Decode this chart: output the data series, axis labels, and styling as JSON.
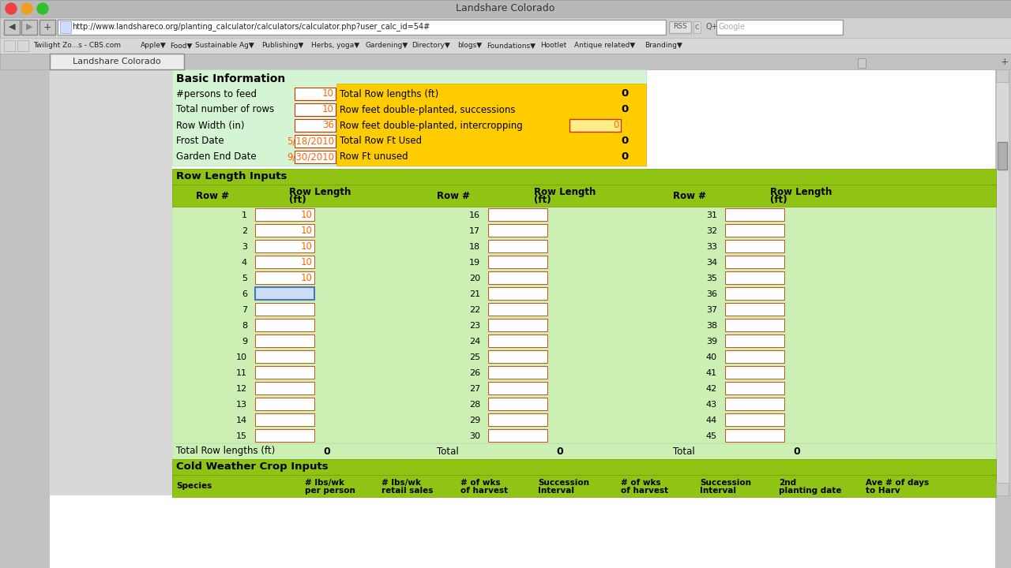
{
  "title": "Landshare Colorado",
  "url": "http://www.landshareco.org/planting_calculator/calculators/calculator.php?user_calc_id=54#",
  "bookmarks": [
    "Twilight Zo...s - CBS.com",
    "Apple▼",
    "Food▼",
    "Sustainable Ag▼",
    "Publishing▼",
    "Herbs, yoga▼",
    "Gardening▼",
    "Directory▼",
    "blogs▼",
    "Foundations▼",
    "Hootlet",
    "Antique related▼",
    "Branding▼"
  ],
  "tab_label": "Landshare Colorado",
  "basic_info_label": "Basic Information",
  "basic_info_fields": [
    {
      "label": "#persons to feed",
      "value": "10"
    },
    {
      "label": "Total number of rows",
      "value": "10"
    },
    {
      "label": "Row Width (in)",
      "value": "36"
    },
    {
      "label": "Frost Date",
      "value": "5/18/2010"
    },
    {
      "label": "Garden End Date",
      "value": "9/30/2010"
    }
  ],
  "right_info_fields": [
    {
      "label": "Total Row lengths (ft)",
      "value": "0",
      "has_input": false
    },
    {
      "label": "Row feet double-planted, successions",
      "value": "0",
      "has_input": false
    },
    {
      "label": "Row feet double-planted, intercropping",
      "value": "0",
      "has_input": true
    },
    {
      "label": "Total Row Ft Used",
      "value": "0",
      "has_input": false
    },
    {
      "label": "Row Ft unused",
      "value": "0",
      "has_input": false
    }
  ],
  "row_section_label": "Row Length Inputs",
  "rows_col1": [
    1,
    2,
    3,
    4,
    5,
    6,
    7,
    8,
    9,
    10,
    11,
    12,
    13,
    14,
    15
  ],
  "rows_col2": [
    16,
    17,
    18,
    19,
    20,
    21,
    22,
    23,
    24,
    25,
    26,
    27,
    28,
    29,
    30
  ],
  "rows_col3": [
    31,
    32,
    33,
    34,
    35,
    36,
    37,
    38,
    39,
    40,
    41,
    42,
    43,
    44,
    45
  ],
  "values_col1": [
    "10",
    "10",
    "10",
    "10",
    "10",
    "",
    "",
    "",
    "",
    "",
    "",
    "",
    "",
    "",
    ""
  ],
  "total_label": "Total Row lengths (ft)",
  "cold_weather_label": "Cold Weather Crop Inputs",
  "cold_headers": [
    "Species",
    "# lbs/wk\nper person",
    "# lbs/wk\nretail sales",
    "# of wks\nof harvest",
    "Succession\nInterval",
    "# of wks\nof harvest",
    "Succession\nInterval",
    "2nd\nplanting date",
    "Ave # of days\nto Harv"
  ],
  "chrome_bg": "#c2c2c2",
  "titlebar_bg": "#b8b8b8",
  "navbar_bg": "#d0d0d0",
  "bookmarks_bg": "#d8d8d8",
  "tabbar_bg": "#c2c2c2",
  "tab_active_bg": "#ececec",
  "content_bg": "#ffffff",
  "sidebar_bg": "#d8d8d8",
  "light_green": "#d4f5d4",
  "yellow_bg": "#ffcc00",
  "lime_green": "#8fc414",
  "row_body_green": "#ccf0b4",
  "input_border": "#cc3300",
  "orange_val": "#ff6600",
  "scroll_blue": "#6a9fd8"
}
